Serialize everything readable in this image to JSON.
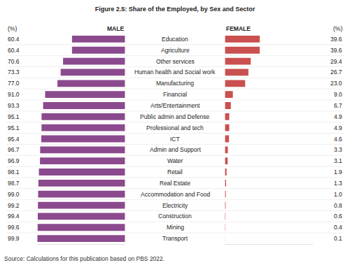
{
  "chart_data": {
    "type": "bar",
    "title": "Figure 2.5: Share of the Employed, by Sex and Sector",
    "orientation": "horizontal",
    "data_labels": true,
    "tick_labels": false,
    "grid": false,
    "xlim": [
      0,
      100
    ],
    "categories": [
      "Education",
      "Agriculture",
      "Other services",
      "Human health and Social work",
      "Manufacturing",
      "Financial",
      "Arts/Entertainment",
      "Public admin and Defense",
      "Professional and tech",
      "ICT",
      "Admin and Support",
      "Water",
      "Retail",
      "Real Estate",
      "Accommodation and Food",
      "Electricity",
      "Construction",
      "Mining",
      "Transport"
    ],
    "series": [
      {
        "name": "MALE",
        "color": "#8b4a8e",
        "values": [
          60.4,
          60.4,
          70.6,
          73.3,
          77.0,
          91.0,
          93.3,
          95.1,
          95.1,
          95.4,
          96.7,
          96.9,
          98.1,
          98.7,
          99.0,
          99.2,
          99.4,
          99.6,
          99.9
        ],
        "value_labels": [
          "60.4",
          "60.4",
          "70.6",
          "73.3",
          "77.0",
          "91.0",
          "93.3",
          "95.1",
          "95.1",
          "95.4",
          "96.7",
          "96.9",
          "98.1",
          "98.7",
          "99.0",
          "99.2",
          "99.4",
          "99.6",
          "99.9"
        ]
      },
      {
        "name": "FEMALE",
        "color": "#c9504f",
        "values": [
          39.6,
          39.6,
          29.4,
          26.7,
          23.0,
          9.0,
          6.7,
          4.9,
          4.9,
          4.6,
          3.3,
          3.1,
          1.9,
          1.3,
          1.0,
          0.8,
          0.6,
          0.4,
          0.1
        ],
        "value_labels": [
          "39.6",
          "39.6",
          "29.4",
          "26.7",
          "23.0",
          "9.0",
          "6.7",
          "4.9",
          "4.9",
          "4.6",
          "3.3",
          "3.1",
          "1.9",
          "1.3",
          "1.0",
          "0.8",
          "0.6",
          "0.4",
          "0.1"
        ]
      }
    ],
    "annotations": [
      "(%)",
      "(%)",
      "Source: Calculations for this publication based on PBS 2022."
    ]
  }
}
